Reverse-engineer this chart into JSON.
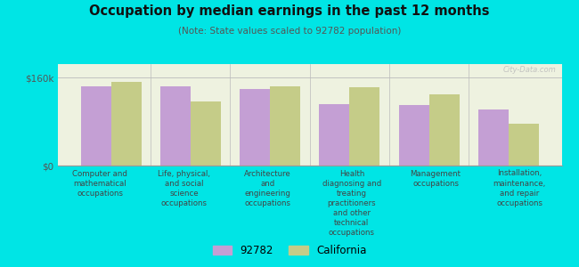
{
  "title": "Occupation by median earnings in the past 12 months",
  "subtitle": "(Note: State values scaled to 92782 population)",
  "background_color": "#00e5e5",
  "plot_bg_color": "#eef2e0",
  "bar_color_92782": "#c49fd4",
  "bar_color_ca": "#c5cc88",
  "ylim": [
    0,
    185000
  ],
  "yticks": [
    0,
    160000
  ],
  "ytick_labels": [
    "$0",
    "$160k"
  ],
  "categories": [
    "Computer and\nmathematical\noccupations",
    "Life, physical,\nand social\nscience\noccupations",
    "Architecture\nand\nengineering\noccupations",
    "Health\ndiagnosing and\ntreating\npractitioners\nand other\ntechnical\noccupations",
    "Management\noccupations",
    "Installation,\nmaintenance,\nand repair\noccupations"
  ],
  "values_92782": [
    145000,
    144000,
    140000,
    112000,
    110000,
    102000
  ],
  "values_ca": [
    152000,
    117000,
    145000,
    142000,
    130000,
    76000
  ],
  "legend_labels": [
    "92782",
    "California"
  ],
  "watermark": "City-Data.com"
}
